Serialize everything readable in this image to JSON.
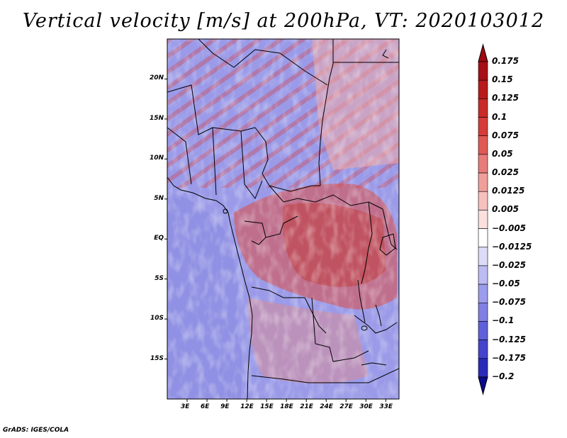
{
  "title": "Vertical velocity [m/s] at 200hPa, VT: 2020103012",
  "footer": "GrADS: IGES/COLA",
  "map": {
    "projection": "latlon",
    "lon_range": [
      0,
      35
    ],
    "lat_range": [
      -20,
      25
    ],
    "x_ticks": [
      {
        "value": 3,
        "label": "3E"
      },
      {
        "value": 6,
        "label": "6E"
      },
      {
        "value": 9,
        "label": "9E"
      },
      {
        "value": 12,
        "label": "12E"
      },
      {
        "value": 15,
        "label": "15E"
      },
      {
        "value": 18,
        "label": "18E"
      },
      {
        "value": 21,
        "label": "21E"
      },
      {
        "value": 24,
        "label": "24E"
      },
      {
        "value": 27,
        "label": "27E"
      },
      {
        "value": 30,
        "label": "30E"
      },
      {
        "value": 33,
        "label": "33E"
      }
    ],
    "y_ticks": [
      {
        "value": 20,
        "label": "20N"
      },
      {
        "value": 15,
        "label": "15N"
      },
      {
        "value": 10,
        "label": "10N"
      },
      {
        "value": 5,
        "label": "5N"
      },
      {
        "value": 0,
        "label": "EQ"
      },
      {
        "value": -5,
        "label": "5S"
      },
      {
        "value": -10,
        "label": "10S"
      },
      {
        "value": -15,
        "label": "15S"
      }
    ]
  },
  "colorbar": {
    "levels": [
      {
        "label": "0.175",
        "color": "#a50f15"
      },
      {
        "label": "0.15",
        "color": "#b8191c"
      },
      {
        "label": "0.125",
        "color": "#c92a2a"
      },
      {
        "label": "0.1",
        "color": "#d63c3a"
      },
      {
        "label": "0.075",
        "color": "#e05a55"
      },
      {
        "label": "0.05",
        "color": "#e87c78"
      },
      {
        "label": "0.025",
        "color": "#f09e9a"
      },
      {
        "label": "0.0125",
        "color": "#f6c0bd"
      },
      {
        "label": "0.005",
        "color": "#fbe0de"
      },
      {
        "label": "−0.005",
        "color": "#ffffff"
      },
      {
        "label": "−0.0125",
        "color": "#dcdcf8"
      },
      {
        "label": "−0.025",
        "color": "#bcbcf2"
      },
      {
        "label": "−0.05",
        "color": "#9c9cec"
      },
      {
        "label": "−0.075",
        "color": "#7f7fe4"
      },
      {
        "label": "−0.1",
        "color": "#6060da"
      },
      {
        "label": "−0.125",
        "color": "#4444cc"
      },
      {
        "label": "−0.175",
        "color": "#2a2ab8"
      },
      {
        "label": "−0.2",
        "color": "#1010a0"
      }
    ],
    "top_color": "#9e0a10",
    "bottom_color": "#0a0a8c"
  }
}
